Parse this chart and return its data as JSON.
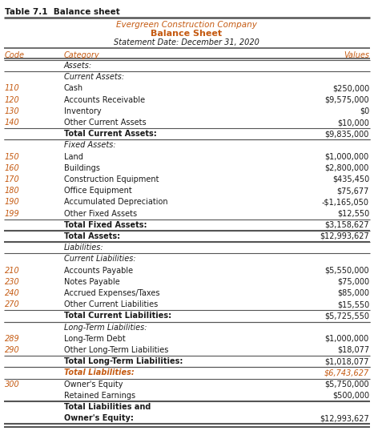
{
  "table_label": "Table 7.1  Balance sheet",
  "company": "Evergreen Construction Company",
  "title": "Balance Sheet",
  "subtitle": "Statement Date: December 31, 2020",
  "rows": [
    {
      "code": "",
      "category": "Assets:",
      "value": "",
      "style": "section_header"
    },
    {
      "code": "",
      "category": "Current Assets:",
      "value": "",
      "style": "subsection_header"
    },
    {
      "code": "110",
      "category": "Cash",
      "value": "$250,000",
      "style": "normal"
    },
    {
      "code": "120",
      "category": "Accounts Receivable",
      "value": "$9,575,000",
      "style": "normal"
    },
    {
      "code": "130",
      "category": "Inventory",
      "value": "$0",
      "style": "normal"
    },
    {
      "code": "140",
      "category": "Other Current Assets",
      "value": "$10,000",
      "style": "normal"
    },
    {
      "code": "",
      "category": "Total Current Assets:",
      "value": "$9,835,000",
      "style": "total"
    },
    {
      "code": "",
      "category": "Fixed Assets:",
      "value": "",
      "style": "subsection_header"
    },
    {
      "code": "150",
      "category": "Land",
      "value": "$1,000,000",
      "style": "normal"
    },
    {
      "code": "160",
      "category": "Buildings",
      "value": "$2,800,000",
      "style": "normal"
    },
    {
      "code": "170",
      "category": "Construction Equipment",
      "value": "$435,450",
      "style": "normal"
    },
    {
      "code": "180",
      "category": "Office Equipment",
      "value": "$75,677",
      "style": "normal"
    },
    {
      "code": "190",
      "category": "Accumulated Depreciation",
      "value": "-$1,165,050",
      "style": "normal"
    },
    {
      "code": "199",
      "category": "Other Fixed Assets",
      "value": "$12,550",
      "style": "normal"
    },
    {
      "code": "",
      "category": "Total Fixed Assets:",
      "value": "$3,158,627",
      "style": "total"
    },
    {
      "code": "",
      "category": "Total Assets:",
      "value": "$12,993,627",
      "style": "grand_total"
    },
    {
      "code": "",
      "category": "Liabilities:",
      "value": "",
      "style": "section_header"
    },
    {
      "code": "",
      "category": "Current Liabilities:",
      "value": "",
      "style": "subsection_header"
    },
    {
      "code": "210",
      "category": "Accounts Payable",
      "value": "$5,550,000",
      "style": "normal"
    },
    {
      "code": "230",
      "category": "Notes Payable",
      "value": "$75,000",
      "style": "normal"
    },
    {
      "code": "240",
      "category": "Accrued Expenses/Taxes",
      "value": "$85,000",
      "style": "normal"
    },
    {
      "code": "270",
      "category": "Other Current Liabilities",
      "value": "$15,550",
      "style": "normal"
    },
    {
      "code": "",
      "category": "Total Current Liabilities:",
      "value": "$5,725,550",
      "style": "total"
    },
    {
      "code": "",
      "category": "Long-Term Liabilities:",
      "value": "",
      "style": "subsection_header"
    },
    {
      "code": "289",
      "category": "Long-Term Debt",
      "value": "$1,000,000",
      "style": "normal"
    },
    {
      "code": "290",
      "category": "Other Long-Term Liabilities",
      "value": "$18,077",
      "style": "normal"
    },
    {
      "code": "",
      "category": "Total Long-Term Liabilities:",
      "value": "$1,018,077",
      "style": "total"
    },
    {
      "code": "",
      "category": "Total Liabilities:",
      "value": "$6,743,627",
      "style": "italic_total"
    },
    {
      "code": "300",
      "category": "Owner's Equity",
      "value": "$5,750,000",
      "style": "normal"
    },
    {
      "code": "",
      "category": "Retained Earnings",
      "value": "$500,000",
      "style": "normal"
    },
    {
      "code": "",
      "category": "Total Liabilities and",
      "value": "",
      "style": "grand_total_line1"
    },
    {
      "code": "",
      "category": "Owner's Equity:",
      "value": "$12,993,627",
      "style": "grand_total_line2"
    }
  ],
  "orange": "#c55a11",
  "dark": "#1a1a1a",
  "gray": "#555555",
  "bg": "#ffffff"
}
